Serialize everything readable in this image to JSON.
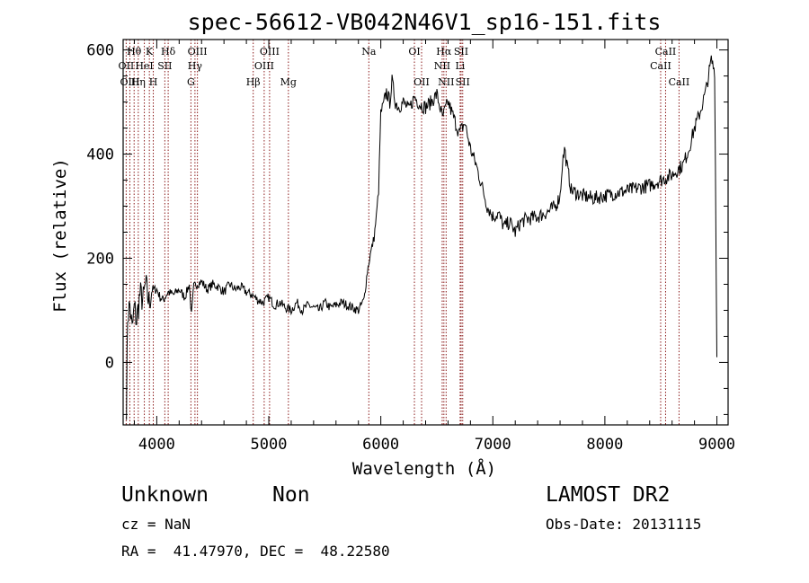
{
  "chart_data": {
    "type": "line",
    "title": "spec-56612-VB042N46V1_sp16-151.fits",
    "xlabel": "Wavelength (Å)",
    "ylabel": "Flux (relative)",
    "xlim": [
      3700,
      9100
    ],
    "ylim": [
      -120,
      620
    ],
    "xticks": [
      4000,
      5000,
      6000,
      7000,
      8000,
      9000
    ],
    "yticks": [
      0,
      200,
      400,
      600
    ],
    "grid": false,
    "line_color": "#000000",
    "marker_color": "#8b1a1a",
    "series": [
      {
        "x": [
          3730,
          3740,
          3760,
          3780,
          3800,
          3820,
          3850,
          3880,
          3900,
          3930,
          3960,
          4000,
          4030,
          4060,
          4100,
          4150,
          4200,
          4250,
          4290,
          4310,
          4330,
          4350,
          4400,
          4450,
          4500,
          4550,
          4600,
          4650,
          4700,
          4750,
          4800,
          4850,
          4900,
          4950,
          5000,
          5050,
          5100,
          5150,
          5200,
          5250,
          5300,
          5350,
          5400,
          5450,
          5500,
          5550,
          5600,
          5650,
          5700,
          5750,
          5800,
          5850,
          5880,
          5900,
          5920,
          5940,
          5960,
          5980,
          6000,
          6020,
          6050,
          6080,
          6100,
          6130,
          6160,
          6200,
          6250,
          6300,
          6350,
          6400,
          6450,
          6500,
          6550,
          6600,
          6650,
          6700,
          6750,
          6800,
          6850,
          6900,
          6950,
          7000,
          7050,
          7100,
          7150,
          7200,
          7250,
          7300,
          7400,
          7500,
          7560,
          7600,
          7620,
          7640,
          7660,
          7700,
          7800,
          7900,
          8000,
          8100,
          8200,
          8300,
          8400,
          8450,
          8500,
          8550,
          8600,
          8650,
          8700,
          8750,
          8800,
          8850,
          8900,
          8950,
          8980,
          9000
        ],
        "y": [
          -80,
          90,
          110,
          60,
          105,
          80,
          130,
          120,
          150,
          115,
          140,
          140,
          125,
          120,
          135,
          130,
          140,
          125,
          150,
          90,
          145,
          150,
          155,
          140,
          150,
          145,
          135,
          150,
          140,
          145,
          135,
          130,
          120,
          115,
          125,
          110,
          115,
          105,
          100,
          115,
          100,
          110,
          105,
          100,
          115,
          105,
          110,
          115,
          110,
          105,
          100,
          120,
          175,
          200,
          220,
          240,
          280,
          330,
          480,
          490,
          520,
          500,
          540,
          500,
          490,
          500,
          485,
          510,
          495,
          490,
          500,
          515,
          470,
          500,
          470,
          440,
          460,
          410,
          380,
          340,
          300,
          280,
          285,
          260,
          270,
          250,
          270,
          275,
          280,
          290,
          300,
          320,
          380,
          410,
          380,
          330,
          320,
          315,
          320,
          325,
          330,
          335,
          340,
          345,
          350,
          355,
          360,
          370,
          380,
          410,
          450,
          480,
          520,
          580,
          560,
          10
        ]
      }
    ],
    "line_markers": {
      "top_row": [
        {
          "label": "Hθ",
          "x": 3798
        },
        {
          "label": "K",
          "x": 3934
        },
        {
          "label": "Hδ",
          "x": 4102
        },
        {
          "label": "OIII",
          "x": 4363
        },
        {
          "label": "OIII",
          "x": 5007
        },
        {
          "label": "Na",
          "x": 5893
        },
        {
          "label": "OI",
          "x": 6300
        },
        {
          "label": "Hα",
          "x": 6563
        },
        {
          "label": "SII",
          "x": 6717
        },
        {
          "label": "CaII",
          "x": 8542
        }
      ],
      "mid_row": [
        {
          "label": "OII",
          "x": 3727
        },
        {
          "label": "HeI",
          "x": 3889
        },
        {
          "label": "SII",
          "x": 4072
        },
        {
          "label": "Hγ",
          "x": 4341
        },
        {
          "label": "OIII",
          "x": 4959
        },
        {
          "label": "NII",
          "x": 6548
        },
        {
          "label": "Li",
          "x": 6708
        },
        {
          "label": "CaII",
          "x": 8498
        }
      ],
      "bottom_row": [
        {
          "label": "OIII",
          "x": 3760
        },
        {
          "label": "Hη",
          "x": 3835
        },
        {
          "label": "H",
          "x": 3969
        },
        {
          "label": "G",
          "x": 4305
        },
        {
          "label": "Hβ",
          "x": 4861
        },
        {
          "label": "Mg",
          "x": 5175
        },
        {
          "label": "OII",
          "x": 6364
        },
        {
          "label": "NII",
          "x": 6583
        },
        {
          "label": "SII",
          "x": 6731
        },
        {
          "label": "CaII",
          "x": 8662
        }
      ]
    }
  },
  "info": {
    "class_text": "Unknown",
    "subclass_text": "Non",
    "survey_text": "LAMOST DR2",
    "cz_text": "cz = NaN",
    "obsdate_text": "Obs-Date: 20131115",
    "radec_text": "RA =  41.47970, DEC =  48.22580"
  }
}
